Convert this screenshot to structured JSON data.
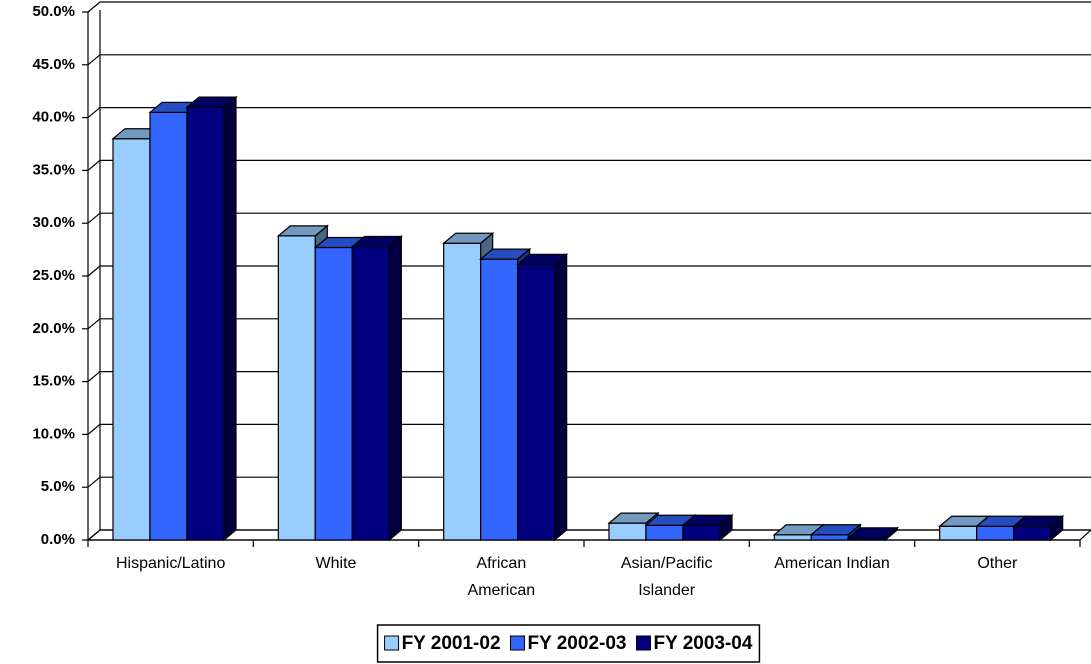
{
  "chart_data": {
    "type": "bar3d",
    "categories": [
      "Hispanic/Latino",
      "White",
      "African\nAmerican",
      "Asian/Pacific\nIslander",
      "American Indian",
      "Other"
    ],
    "series": [
      {
        "name": "FY 2001-02",
        "color": "#99ccff",
        "values": [
          38.0,
          28.8,
          28.1,
          1.6,
          0.5,
          1.3
        ]
      },
      {
        "name": "FY 2002-03",
        "color": "#3366ff",
        "values": [
          40.5,
          27.7,
          26.6,
          1.4,
          0.5,
          1.3
        ]
      },
      {
        "name": "FY 2003-04",
        "color": "#000080",
        "values": [
          41.0,
          27.8,
          26.1,
          1.4,
          0.2,
          1.3
        ]
      }
    ],
    "ylim": [
      0,
      50
    ],
    "yticks": [
      {
        "value": 0,
        "label": "0.0%"
      },
      {
        "value": 5,
        "label": "5.0%"
      },
      {
        "value": 10,
        "label": "10.0%"
      },
      {
        "value": 15,
        "label": "15.0%"
      },
      {
        "value": 20,
        "label": "20.0%"
      },
      {
        "value": 25,
        "label": "25.0%"
      },
      {
        "value": 30,
        "label": "30.0%"
      },
      {
        "value": 35,
        "label": "35.0%"
      },
      {
        "value": 40,
        "label": "40.0%"
      },
      {
        "value": 45,
        "label": "45.0%"
      },
      {
        "value": 50,
        "label": "50.0%"
      }
    ],
    "grid": true,
    "legend": "bottom"
  }
}
